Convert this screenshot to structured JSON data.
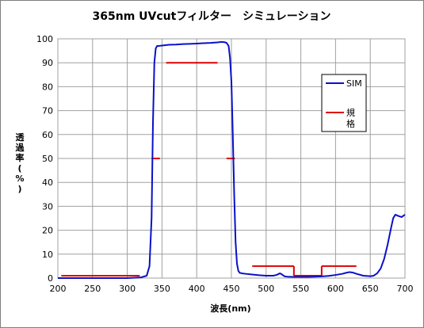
{
  "chart_data": {
    "type": "line",
    "title": "365nm UVcutフィルター　シミュレーション",
    "xlabel": "波長(nm)",
    "ylabel_chars": [
      "透",
      "過",
      "率",
      "(",
      "%",
      ")"
    ],
    "xlim": [
      200,
      700
    ],
    "ylim": [
      0,
      100
    ],
    "xticks": [
      200,
      250,
      300,
      350,
      400,
      450,
      500,
      550,
      600,
      650,
      700
    ],
    "yticks": [
      0,
      10,
      20,
      30,
      40,
      50,
      60,
      70,
      80,
      90,
      100
    ],
    "grid": true,
    "legend_position": "right",
    "colors": {
      "sim": "#0a10c8",
      "spec": "#dd0000",
      "grid": "#a0a0a0"
    },
    "series": [
      {
        "name": "SIM",
        "style": "line",
        "x": [
          200,
          230,
          260,
          300,
          320,
          328,
          332,
          335,
          337,
          339,
          341,
          343,
          345,
          350,
          360,
          370,
          380,
          390,
          400,
          410,
          420,
          430,
          435,
          440,
          443,
          446,
          448,
          450,
          452,
          454,
          456,
          458,
          460,
          462,
          465,
          470,
          480,
          490,
          500,
          510,
          515,
          520,
          523,
          526,
          530,
          540,
          550,
          560,
          570,
          580,
          590,
          600,
          610,
          615,
          620,
          625,
          630,
          640,
          650,
          655,
          660,
          665,
          670,
          675,
          680,
          683,
          686,
          690,
          695,
          700
        ],
        "y": [
          0,
          0,
          0,
          0,
          0.3,
          1,
          5,
          25,
          65,
          90,
          96,
          97,
          97,
          97.2,
          97.5,
          97.6,
          97.8,
          97.9,
          98,
          98.2,
          98.3,
          98.5,
          98.7,
          98.6,
          98.3,
          97,
          92,
          82,
          60,
          35,
          15,
          6,
          3,
          2.2,
          2,
          1.8,
          1.5,
          1.2,
          1,
          1,
          1.3,
          2,
          1.5,
          0.8,
          0.6,
          0.5,
          0.5,
          0.5,
          0.6,
          0.7,
          0.9,
          1.3,
          1.8,
          2.2,
          2.5,
          2.3,
          1.8,
          1,
          0.8,
          1,
          2,
          4,
          8,
          14,
          21,
          25,
          26.5,
          26,
          25.5,
          26.5
        ]
      },
      {
        "name": "規格",
        "style": "segments",
        "segments": [
          [
            [
              205,
              1
            ],
            [
              318,
              1
            ]
          ],
          [
            [
              335,
              50
            ],
            [
              347,
              50
            ]
          ],
          [
            [
              356,
              90
            ],
            [
              430,
              90
            ]
          ],
          [
            [
              443,
              50
            ],
            [
              455,
              50
            ]
          ],
          [
            [
              480,
              5
            ],
            [
              540,
              5
            ]
          ],
          [
            [
              540,
              5
            ],
            [
              540,
              1
            ]
          ],
          [
            [
              540,
              1
            ],
            [
              580,
              1
            ]
          ],
          [
            [
              580,
              1
            ],
            [
              580,
              5
            ]
          ],
          [
            [
              580,
              5
            ],
            [
              630,
              5
            ]
          ]
        ]
      }
    ]
  }
}
